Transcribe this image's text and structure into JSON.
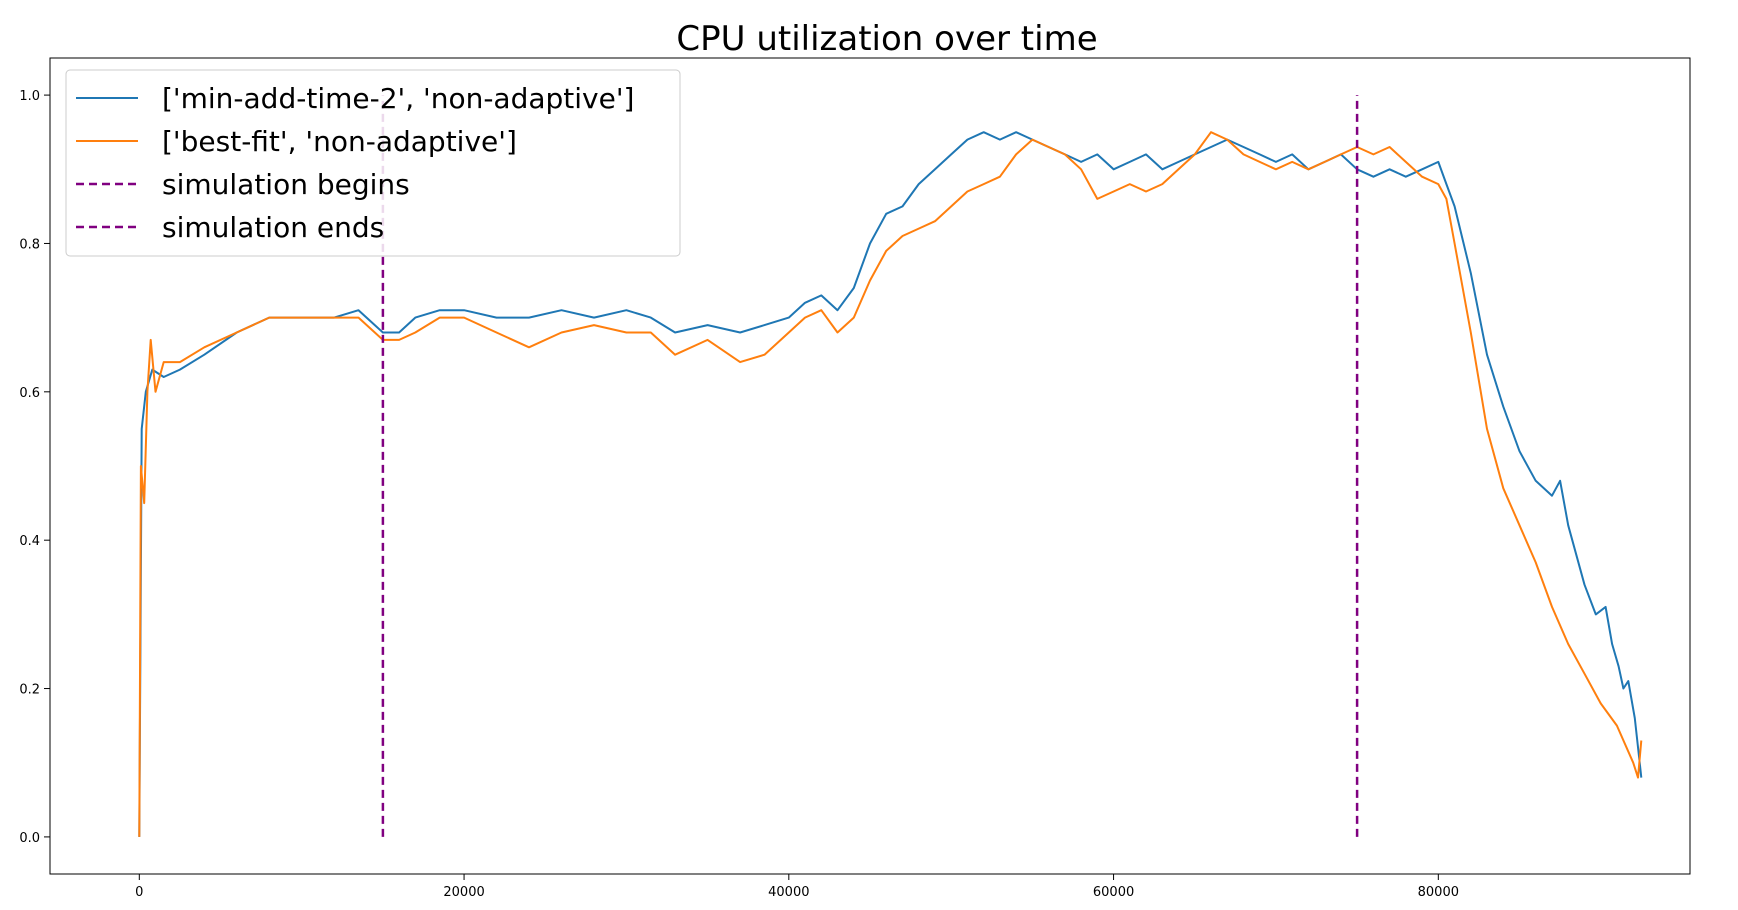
{
  "chart_data": {
    "type": "line",
    "title": "CPU utilization over time",
    "xlabel": "",
    "ylabel": "",
    "xlim": [
      -5500,
      95500
    ],
    "ylim": [
      -0.05,
      1.05
    ],
    "xticks": [
      0,
      20000,
      40000,
      60000,
      80000
    ],
    "xtick_labels": [
      "0",
      "20000",
      "40000",
      "60000",
      "80000"
    ],
    "yticks": [
      0.0,
      0.2,
      0.4,
      0.6,
      0.8,
      1.0
    ],
    "ytick_labels": [
      "0.0",
      "0.2",
      "0.4",
      "0.6",
      "0.8",
      "1.0"
    ],
    "grid": false,
    "legend_position": "upper-left",
    "series": [
      {
        "name": "['min-add-time-2', 'non-adaptive']",
        "color": "#1f77b4",
        "points": [
          [
            0,
            0.0
          ],
          [
            150,
            0.55
          ],
          [
            400,
            0.6
          ],
          [
            800,
            0.63
          ],
          [
            1500,
            0.62
          ],
          [
            2500,
            0.63
          ],
          [
            4000,
            0.65
          ],
          [
            6000,
            0.68
          ],
          [
            8000,
            0.7
          ],
          [
            10000,
            0.7
          ],
          [
            12000,
            0.7
          ],
          [
            13500,
            0.71
          ],
          [
            14500,
            0.69
          ],
          [
            15000,
            0.68
          ],
          [
            16000,
            0.68
          ],
          [
            17000,
            0.7
          ],
          [
            18500,
            0.71
          ],
          [
            20000,
            0.71
          ],
          [
            22000,
            0.7
          ],
          [
            24000,
            0.7
          ],
          [
            26000,
            0.71
          ],
          [
            28000,
            0.7
          ],
          [
            30000,
            0.71
          ],
          [
            31500,
            0.7
          ],
          [
            33000,
            0.68
          ],
          [
            35000,
            0.69
          ],
          [
            37000,
            0.68
          ],
          [
            38500,
            0.69
          ],
          [
            40000,
            0.7
          ],
          [
            41000,
            0.72
          ],
          [
            42000,
            0.73
          ],
          [
            43000,
            0.71
          ],
          [
            44000,
            0.74
          ],
          [
            45000,
            0.8
          ],
          [
            46000,
            0.84
          ],
          [
            47000,
            0.85
          ],
          [
            48000,
            0.88
          ],
          [
            49000,
            0.9
          ],
          [
            50000,
            0.92
          ],
          [
            51000,
            0.94
          ],
          [
            52000,
            0.95
          ],
          [
            53000,
            0.94
          ],
          [
            54000,
            0.95
          ],
          [
            55000,
            0.94
          ],
          [
            56000,
            0.93
          ],
          [
            57000,
            0.92
          ],
          [
            58000,
            0.91
          ],
          [
            59000,
            0.92
          ],
          [
            60000,
            0.9
          ],
          [
            61000,
            0.91
          ],
          [
            62000,
            0.92
          ],
          [
            63000,
            0.9
          ],
          [
            64000,
            0.91
          ],
          [
            65000,
            0.92
          ],
          [
            66000,
            0.93
          ],
          [
            67000,
            0.94
          ],
          [
            68000,
            0.93
          ],
          [
            69000,
            0.92
          ],
          [
            70000,
            0.91
          ],
          [
            71000,
            0.92
          ],
          [
            72000,
            0.9
          ],
          [
            73000,
            0.91
          ],
          [
            74000,
            0.92
          ],
          [
            75000,
            0.9
          ],
          [
            76000,
            0.89
          ],
          [
            77000,
            0.9
          ],
          [
            78000,
            0.89
          ],
          [
            79000,
            0.9
          ],
          [
            80000,
            0.91
          ],
          [
            80500,
            0.88
          ],
          [
            81000,
            0.85
          ],
          [
            82000,
            0.76
          ],
          [
            83000,
            0.65
          ],
          [
            84000,
            0.58
          ],
          [
            85000,
            0.52
          ],
          [
            86000,
            0.48
          ],
          [
            87000,
            0.46
          ],
          [
            87500,
            0.48
          ],
          [
            88000,
            0.42
          ],
          [
            89000,
            0.34
          ],
          [
            89700,
            0.3
          ],
          [
            90300,
            0.31
          ],
          [
            90700,
            0.26
          ],
          [
            91100,
            0.23
          ],
          [
            91400,
            0.2
          ],
          [
            91700,
            0.21
          ],
          [
            92100,
            0.16
          ],
          [
            92400,
            0.1
          ],
          [
            92500,
            0.08
          ]
        ]
      },
      {
        "name": "['best-fit', 'non-adaptive']",
        "color": "#ff7f0e",
        "points": [
          [
            0,
            0.0
          ],
          [
            100,
            0.5
          ],
          [
            300,
            0.45
          ],
          [
            500,
            0.6
          ],
          [
            700,
            0.67
          ],
          [
            1000,
            0.6
          ],
          [
            1500,
            0.64
          ],
          [
            2500,
            0.64
          ],
          [
            4000,
            0.66
          ],
          [
            6000,
            0.68
          ],
          [
            8000,
            0.7
          ],
          [
            10000,
            0.7
          ],
          [
            12000,
            0.7
          ],
          [
            13500,
            0.7
          ],
          [
            14500,
            0.68
          ],
          [
            15000,
            0.67
          ],
          [
            16000,
            0.67
          ],
          [
            17000,
            0.68
          ],
          [
            18500,
            0.7
          ],
          [
            20000,
            0.7
          ],
          [
            22000,
            0.68
          ],
          [
            24000,
            0.66
          ],
          [
            26000,
            0.68
          ],
          [
            28000,
            0.69
          ],
          [
            30000,
            0.68
          ],
          [
            31500,
            0.68
          ],
          [
            33000,
            0.65
          ],
          [
            35000,
            0.67
          ],
          [
            37000,
            0.64
          ],
          [
            38500,
            0.65
          ],
          [
            40000,
            0.68
          ],
          [
            41000,
            0.7
          ],
          [
            42000,
            0.71
          ],
          [
            43000,
            0.68
          ],
          [
            44000,
            0.7
          ],
          [
            45000,
            0.75
          ],
          [
            46000,
            0.79
          ],
          [
            47000,
            0.81
          ],
          [
            48000,
            0.82
          ],
          [
            49000,
            0.83
          ],
          [
            50000,
            0.85
          ],
          [
            51000,
            0.87
          ],
          [
            52000,
            0.88
          ],
          [
            53000,
            0.89
          ],
          [
            54000,
            0.92
          ],
          [
            55000,
            0.94
          ],
          [
            56000,
            0.93
          ],
          [
            57000,
            0.92
          ],
          [
            58000,
            0.9
          ],
          [
            59000,
            0.86
          ],
          [
            60000,
            0.87
          ],
          [
            61000,
            0.88
          ],
          [
            62000,
            0.87
          ],
          [
            63000,
            0.88
          ],
          [
            64000,
            0.9
          ],
          [
            65000,
            0.92
          ],
          [
            66000,
            0.95
          ],
          [
            67000,
            0.94
          ],
          [
            68000,
            0.92
          ],
          [
            69000,
            0.91
          ],
          [
            70000,
            0.9
          ],
          [
            71000,
            0.91
          ],
          [
            72000,
            0.9
          ],
          [
            73000,
            0.91
          ],
          [
            74000,
            0.92
          ],
          [
            75000,
            0.93
          ],
          [
            76000,
            0.92
          ],
          [
            77000,
            0.93
          ],
          [
            78000,
            0.91
          ],
          [
            79000,
            0.89
          ],
          [
            80000,
            0.88
          ],
          [
            80500,
            0.86
          ],
          [
            81000,
            0.8
          ],
          [
            82000,
            0.68
          ],
          [
            83000,
            0.55
          ],
          [
            84000,
            0.47
          ],
          [
            85000,
            0.42
          ],
          [
            86000,
            0.37
          ],
          [
            87000,
            0.31
          ],
          [
            88000,
            0.26
          ],
          [
            89000,
            0.22
          ],
          [
            90000,
            0.18
          ],
          [
            91000,
            0.15
          ],
          [
            92000,
            0.1
          ],
          [
            92300,
            0.08
          ],
          [
            92500,
            0.13
          ]
        ]
      },
      {
        "name": "simulation begins",
        "color": "#800080",
        "style": "dashed",
        "points": [
          [
            15000,
            0.0
          ],
          [
            15000,
            1.0
          ]
        ]
      },
      {
        "name": "simulation ends",
        "color": "#800080",
        "style": "dashed",
        "points": [
          [
            75000,
            0.0
          ],
          [
            75000,
            1.0
          ]
        ]
      }
    ]
  }
}
